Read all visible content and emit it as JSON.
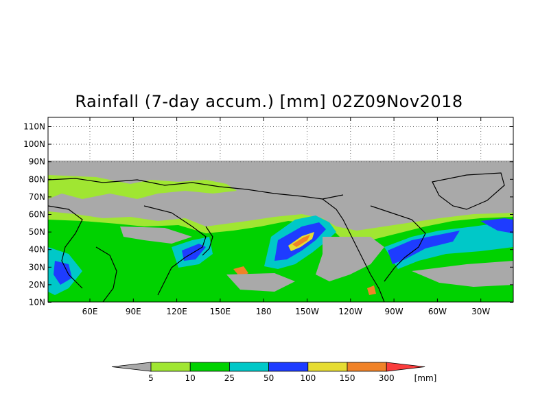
{
  "title": "Rainfall (7-day accum.) [mm] 02Z09Nov2018",
  "map": {
    "lat_labels": [
      "110N",
      "100N",
      "90N",
      "80N",
      "70N",
      "60N",
      "50N",
      "40N",
      "30N",
      "20N",
      "10N"
    ],
    "lon_labels": [
      "60E",
      "90E",
      "120E",
      "150E",
      "180",
      "150W",
      "120W",
      "90W",
      "60W",
      "30W"
    ],
    "no_data_color": "#a9a9a9"
  },
  "legend": {
    "labels": [
      "5",
      "10",
      "25",
      "50",
      "100",
      "150",
      "300"
    ],
    "unit": "[mm]",
    "colors": [
      "#a9a9a9",
      "#a0e632",
      "#00d200",
      "#00c8c8",
      "#1e3cff",
      "#e6dc32",
      "#f08228",
      "#fa3c3c"
    ]
  }
}
